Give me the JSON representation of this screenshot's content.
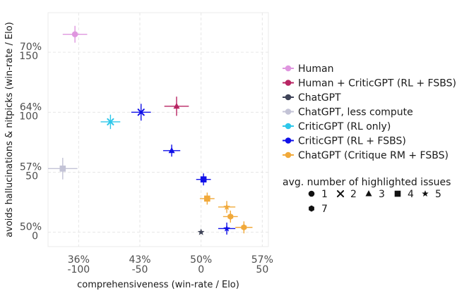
{
  "chart_data": {
    "type": "scatter",
    "xlabel": "comprehensiveness (win-rate / Elo)",
    "ylabel": "avoids hallucinations & nitpicks (win-rate / Elo)",
    "xlim": [
      -125,
      55
    ],
    "ylim": [
      -12,
      183
    ],
    "grid": true,
    "x_ticks": [
      {
        "value": -100,
        "pct": "36%",
        "elo": "-100"
      },
      {
        "value": -50,
        "pct": "43%",
        "elo": "-50"
      },
      {
        "value": 0,
        "pct": "50%",
        "elo": "0"
      },
      {
        "value": 50,
        "pct": "57%",
        "elo": "50"
      }
    ],
    "y_ticks": [
      {
        "value": 0,
        "pct": "50%",
        "elo": "0"
      },
      {
        "value": 50,
        "pct": "57%",
        "elo": "50"
      },
      {
        "value": 100,
        "pct": "64%",
        "elo": "100"
      },
      {
        "value": 150,
        "pct": "70%",
        "elo": "150"
      }
    ],
    "legend_placement": "right",
    "series": [
      {
        "name": "Human",
        "color": "#df96df",
        "points": [
          {
            "x": -103,
            "y": 165,
            "issues": 1,
            "xerr": 10,
            "yerr": 7
          }
        ]
      },
      {
        "name": "Human + CriticGPT (RL + FSBS)",
        "color": "#b82563",
        "points": [
          {
            "x": -20,
            "y": 105,
            "issues": 3,
            "xerr": 10,
            "yerr": 8
          }
        ]
      },
      {
        "name": "ChatGPT",
        "color": "#3f4458",
        "points": [
          {
            "x": 0,
            "y": 0,
            "issues": 5,
            "xerr": 0,
            "yerr": 0
          }
        ]
      },
      {
        "name": "ChatGPT, less compute",
        "color": "#c3c3d6",
        "points": [
          {
            "x": -113,
            "y": 53,
            "issues": 4,
            "xerr": 12,
            "yerr": 9
          }
        ]
      },
      {
        "name": "CriticGPT (RL only)",
        "color": "#2dc7ea",
        "points": [
          {
            "x": -74,
            "y": 92,
            "issues": 2,
            "xerr": 8,
            "yerr": 6
          }
        ]
      },
      {
        "name": "CriticGPT (RL + FSBS)",
        "color": "#1010e8",
        "points": [
          {
            "x": -49,
            "y": 100,
            "issues": 2,
            "xerr": 8,
            "yerr": 7
          },
          {
            "x": -24,
            "y": 68,
            "issues": 3,
            "xerr": 7,
            "yerr": 5
          },
          {
            "x": 2,
            "y": 44,
            "issues": 4,
            "xerr": 6,
            "yerr": 5
          },
          {
            "x": 21,
            "y": 3,
            "issues": 5,
            "xerr": 7,
            "yerr": 5
          }
        ]
      },
      {
        "name": "ChatGPT (Critique RM + FSBS)",
        "color": "#f1a93a",
        "points": [
          {
            "x": 5,
            "y": 28,
            "issues": 4,
            "xerr": 6,
            "yerr": 5
          },
          {
            "x": 21,
            "y": 21,
            "issues": 5,
            "xerr": 7,
            "yerr": 5
          },
          {
            "x": 24,
            "y": 13,
            "issues": 6,
            "xerr": 6,
            "yerr": 5
          },
          {
            "x": 35,
            "y": 4,
            "issues": 7,
            "xerr": 7,
            "yerr": 5
          }
        ]
      }
    ],
    "marker_legend": {
      "title": "avg. number of highlighted issues",
      "items": [
        {
          "label": "1",
          "shape": "circle"
        },
        {
          "label": "2",
          "shape": "x"
        },
        {
          "label": "3",
          "shape": "triangle"
        },
        {
          "label": "4",
          "shape": "square"
        },
        {
          "label": "5",
          "shape": "star"
        },
        {
          "label": "7",
          "shape": "hexagon"
        }
      ]
    }
  }
}
